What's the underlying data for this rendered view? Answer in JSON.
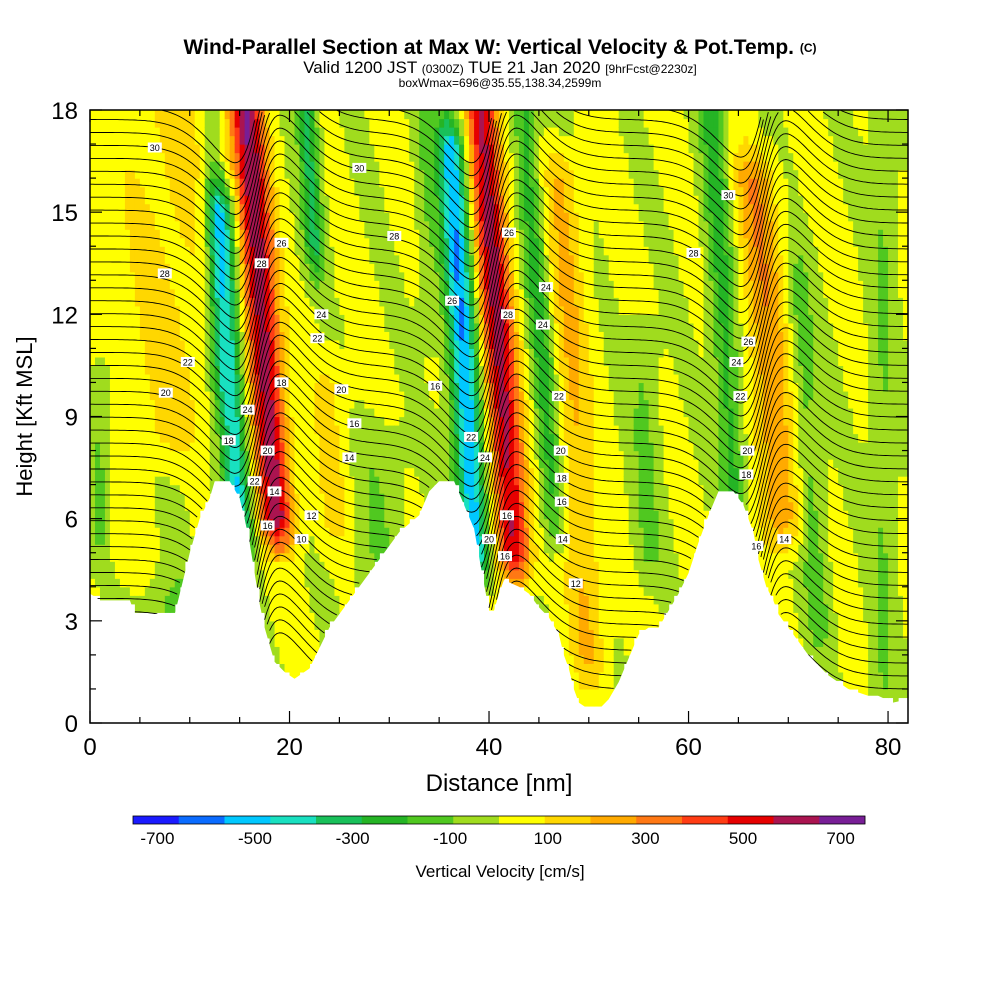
{
  "title": {
    "main": "Wind-Parallel Section at Max W: Vertical Velocity & Pot.Temp.",
    "main_tag": "(C)",
    "valid_prefix": "Valid 1200 JST",
    "valid_utc": "(0300Z)",
    "valid_date": "TUE 21 Jan 2020",
    "forecast": "[9hrFcst@2230z]",
    "box": "boxWmax=696@35.55,138.34,2599m"
  },
  "chart_data": {
    "type": "heatmap",
    "xlabel": "Distance [nm]",
    "ylabel": "Height [Kft MSL]",
    "xlim": [
      0,
      82
    ],
    "ylim": [
      0,
      18
    ],
    "xticks": [
      0,
      20,
      40,
      60,
      80
    ],
    "yticks": [
      0,
      3,
      6,
      9,
      12,
      15,
      18
    ],
    "colorbar": {
      "label": "Vertical Velocity [cm/s]",
      "tick_labels": [
        "-700",
        "-500",
        "-300",
        "-100",
        "100",
        "300",
        "500",
        "700"
      ],
      "tick_values": [
        -700,
        -500,
        -300,
        -100,
        100,
        300,
        500,
        700
      ],
      "bins": [
        -750,
        -650,
        -550,
        -450,
        -350,
        -250,
        -150,
        -50,
        50,
        150,
        250,
        350,
        450,
        550,
        650,
        750
      ],
      "colors": [
        "#1a1aff",
        "#0a6bff",
        "#00c8ff",
        "#19e0c0",
        "#19c05a",
        "#25b425",
        "#50c820",
        "#a0dc1e",
        "#ffff00",
        "#ffd700",
        "#ffaa00",
        "#ff7814",
        "#ff3c14",
        "#e60000",
        "#aa1450",
        "#781e96"
      ]
    },
    "terrain": [
      {
        "x": 0,
        "h": 3.8
      },
      {
        "x": 1,
        "h": 3.6
      },
      {
        "x": 4,
        "h": 3.6
      },
      {
        "x": 4.5,
        "h": 3.2
      },
      {
        "x": 6,
        "h": 3.2
      },
      {
        "x": 8.5,
        "h": 3.2
      },
      {
        "x": 9,
        "h": 3.8
      },
      {
        "x": 9.5,
        "h": 4.4
      },
      {
        "x": 10,
        "h": 5.0
      },
      {
        "x": 11,
        "h": 6.0
      },
      {
        "x": 12,
        "h": 6.6
      },
      {
        "x": 12.5,
        "h": 7.1
      },
      {
        "x": 14,
        "h": 7.1
      },
      {
        "x": 15,
        "h": 6.6
      },
      {
        "x": 15.5,
        "h": 6.0
      },
      {
        "x": 16,
        "h": 5.3
      },
      {
        "x": 17,
        "h": 3.5
      },
      {
        "x": 17.5,
        "h": 2.8
      },
      {
        "x": 18.5,
        "h": 1.8
      },
      {
        "x": 19.5,
        "h": 1.5
      },
      {
        "x": 20.5,
        "h": 1.3
      },
      {
        "x": 22,
        "h": 1.6
      },
      {
        "x": 23,
        "h": 2.2
      },
      {
        "x": 24,
        "h": 2.8
      },
      {
        "x": 25,
        "h": 3.2
      },
      {
        "x": 26,
        "h": 3.6
      },
      {
        "x": 27,
        "h": 4.0
      },
      {
        "x": 29,
        "h": 4.8
      },
      {
        "x": 31,
        "h": 5.6
      },
      {
        "x": 33,
        "h": 6.1
      },
      {
        "x": 34,
        "h": 6.8
      },
      {
        "x": 35,
        "h": 7.1
      },
      {
        "x": 36.5,
        "h": 7.1
      },
      {
        "x": 37.5,
        "h": 6.4
      },
      {
        "x": 38.5,
        "h": 5.7
      },
      {
        "x": 39.3,
        "h": 4.4
      },
      {
        "x": 40,
        "h": 3.3
      },
      {
        "x": 40.5,
        "h": 3.3
      },
      {
        "x": 41,
        "h": 3.8
      },
      {
        "x": 41.5,
        "h": 4.2
      },
      {
        "x": 43,
        "h": 4.0
      },
      {
        "x": 44,
        "h": 3.8
      },
      {
        "x": 45,
        "h": 3.4
      },
      {
        "x": 46,
        "h": 3.1
      },
      {
        "x": 47,
        "h": 2.6
      },
      {
        "x": 47.5,
        "h": 2.0
      },
      {
        "x": 48,
        "h": 1.6
      },
      {
        "x": 48.5,
        "h": 1.0
      },
      {
        "x": 49,
        "h": 0.6
      },
      {
        "x": 50,
        "h": 0.4
      },
      {
        "x": 51,
        "h": 0.4
      },
      {
        "x": 52,
        "h": 0.7
      },
      {
        "x": 53,
        "h": 1.2
      },
      {
        "x": 54,
        "h": 1.9
      },
      {
        "x": 55,
        "h": 2.6
      },
      {
        "x": 56,
        "h": 2.8
      },
      {
        "x": 57,
        "h": 2.8
      },
      {
        "x": 58,
        "h": 3.3
      },
      {
        "x": 59,
        "h": 3.8
      },
      {
        "x": 60,
        "h": 4.4
      },
      {
        "x": 61,
        "h": 5.3
      },
      {
        "x": 62,
        "h": 6.1
      },
      {
        "x": 63,
        "h": 6.8
      },
      {
        "x": 64.5,
        "h": 6.8
      },
      {
        "x": 65.5,
        "h": 6.4
      },
      {
        "x": 66.5,
        "h": 5.6
      },
      {
        "x": 67,
        "h": 4.8
      },
      {
        "x": 67.8,
        "h": 4.0
      },
      {
        "x": 68.5,
        "h": 3.6
      },
      {
        "x": 69,
        "h": 3.2
      },
      {
        "x": 70,
        "h": 2.8
      },
      {
        "x": 71,
        "h": 2.4
      },
      {
        "x": 72,
        "h": 2.0
      },
      {
        "x": 73,
        "h": 1.7
      },
      {
        "x": 74,
        "h": 1.4
      },
      {
        "x": 75,
        "h": 1.2
      },
      {
        "x": 76,
        "h": 1.0
      },
      {
        "x": 77,
        "h": 0.9
      },
      {
        "x": 78,
        "h": 0.8
      },
      {
        "x": 79,
        "h": 0.8
      },
      {
        "x": 80.5,
        "h": 0.6
      },
      {
        "x": 82,
        "h": 0.7
      }
    ],
    "updrafts": [
      {
        "x": 18.7,
        "hb": 6.0,
        "ht": 18,
        "slope": -0.25,
        "w": 1.7,
        "amp": 650
      },
      {
        "x": 42.5,
        "hb": 5.0,
        "ht": 18,
        "slope": -0.25,
        "w": 1.7,
        "amp": 620
      },
      {
        "x": 69.5,
        "hb": 6.0,
        "ht": 16.0,
        "slope": -0.3,
        "w": 2.0,
        "amp": 280
      },
      {
        "x": 50.0,
        "hb": 2.0,
        "ht": 16.0,
        "slope": -0.2,
        "w": 1.8,
        "amp": 200
      },
      {
        "x": 24.5,
        "hb": 6.0,
        "ht": 10.0,
        "slope": -0.15,
        "w": 1.8,
        "amp": 110
      },
      {
        "x": 8.0,
        "hb": 5.0,
        "ht": 18,
        "slope": 0,
        "w": 6.0,
        "amp": 110
      }
    ],
    "downdrafts": [
      {
        "x": 15.0,
        "hb": 5.5,
        "ht": 15.0,
        "slope": -0.2,
        "w": 1.4,
        "amp": -520
      },
      {
        "x": 38.6,
        "hb": 5.0,
        "ht": 17.0,
        "slope": -0.2,
        "w": 1.5,
        "amp": -600
      },
      {
        "x": 22.5,
        "hb": 14.0,
        "ht": 18,
        "slope": -0.2,
        "w": 1.0,
        "amp": -330
      },
      {
        "x": 46.5,
        "hb": 6.0,
        "ht": 18,
        "slope": -0.25,
        "w": 1.2,
        "amp": -250
      },
      {
        "x": 64.5,
        "hb": 7.0,
        "ht": 18,
        "slope": -0.2,
        "w": 1.3,
        "amp": -250
      },
      {
        "x": 56.0,
        "hb": 5.0,
        "ht": 11.0,
        "slope": -0.1,
        "w": 1.5,
        "amp": -120
      },
      {
        "x": 73.0,
        "hb": 3.0,
        "ht": 13.0,
        "slope": -0.2,
        "w": 1.3,
        "amp": -160
      },
      {
        "x": 9.0,
        "hb": 3.0,
        "ht": 7.0,
        "slope": 0,
        "w": 4.0,
        "amp": -130
      },
      {
        "x": 1.0,
        "hb": 5.5,
        "ht": 10.0,
        "slope": 0,
        "w": 1.0,
        "amp": -150
      },
      {
        "x": 29.0,
        "hb": 4.0,
        "ht": 8.0,
        "slope": 0,
        "w": 2.5,
        "amp": -100
      },
      {
        "x": 13.0,
        "hb": 10.0,
        "ht": 18,
        "slope": -0.1,
        "w": 1.0,
        "amp": -140
      },
      {
        "x": 34.0,
        "hb": 12.0,
        "ht": 18,
        "slope": -0.1,
        "w": 1.0,
        "amp": -100
      },
      {
        "x": 79.5,
        "hb": 1.0,
        "ht": 18,
        "slope": 0,
        "w": 1.3,
        "amp": -110
      }
    ],
    "contour_labels": [
      {
        "text": "30",
        "x": 6.5,
        "y": 16.9
      },
      {
        "text": "30",
        "x": 27,
        "y": 16.3
      },
      {
        "text": "30",
        "x": 64,
        "y": 15.5
      },
      {
        "text": "28",
        "x": 7.5,
        "y": 13.2
      },
      {
        "text": "28",
        "x": 30.5,
        "y": 14.3
      },
      {
        "text": "28",
        "x": 60.5,
        "y": 13.8
      },
      {
        "text": "28",
        "x": 17.2,
        "y": 13.5
      },
      {
        "text": "26",
        "x": 19.2,
        "y": 14.1
      },
      {
        "text": "26",
        "x": 36.3,
        "y": 12.4
      },
      {
        "text": "26",
        "x": 42.0,
        "y": 14.4
      },
      {
        "text": "28",
        "x": 41.9,
        "y": 12.0
      },
      {
        "text": "24",
        "x": 45.7,
        "y": 12.8
      },
      {
        "text": "26",
        "x": 66.0,
        "y": 11.2
      },
      {
        "text": "24",
        "x": 23.2,
        "y": 12.0
      },
      {
        "text": "22",
        "x": 22.8,
        "y": 11.3
      },
      {
        "text": "24",
        "x": 45.4,
        "y": 11.7
      },
      {
        "text": "24",
        "x": 64.8,
        "y": 10.6
      },
      {
        "text": "22",
        "x": 9.8,
        "y": 10.6
      },
      {
        "text": "20",
        "x": 7.6,
        "y": 9.7
      },
      {
        "text": "20",
        "x": 25.2,
        "y": 9.8
      },
      {
        "text": "16",
        "x": 34.6,
        "y": 9.9
      },
      {
        "text": "18",
        "x": 19.2,
        "y": 10.0
      },
      {
        "text": "22",
        "x": 47.0,
        "y": 9.6
      },
      {
        "text": "22",
        "x": 65.2,
        "y": 9.6
      },
      {
        "text": "24",
        "x": 15.8,
        "y": 9.2
      },
      {
        "text": "16",
        "x": 26.5,
        "y": 8.8
      },
      {
        "text": "18",
        "x": 13.9,
        "y": 8.3
      },
      {
        "text": "20",
        "x": 17.8,
        "y": 8.0
      },
      {
        "text": "22",
        "x": 38.2,
        "y": 8.4
      },
      {
        "text": "20",
        "x": 47.2,
        "y": 8.0
      },
      {
        "text": "20",
        "x": 65.9,
        "y": 8.0
      },
      {
        "text": "14",
        "x": 26.0,
        "y": 7.8
      },
      {
        "text": "24",
        "x": 39.6,
        "y": 7.8
      },
      {
        "text": "18",
        "x": 47.3,
        "y": 7.2
      },
      {
        "text": "18",
        "x": 65.8,
        "y": 7.3
      },
      {
        "text": "22",
        "x": 16.5,
        "y": 7.1
      },
      {
        "text": "14",
        "x": 18.5,
        "y": 6.8
      },
      {
        "text": "16",
        "x": 47.3,
        "y": 6.5
      },
      {
        "text": "12",
        "x": 22.2,
        "y": 6.1
      },
      {
        "text": "16",
        "x": 41.8,
        "y": 6.1
      },
      {
        "text": "16",
        "x": 17.8,
        "y": 5.8
      },
      {
        "text": "10",
        "x": 21.2,
        "y": 5.4
      },
      {
        "text": "20",
        "x": 40.0,
        "y": 5.4
      },
      {
        "text": "14",
        "x": 47.4,
        "y": 5.4
      },
      {
        "text": "14",
        "x": 69.6,
        "y": 5.4
      },
      {
        "text": "16",
        "x": 66.8,
        "y": 5.2
      },
      {
        "text": "16",
        "x": 41.6,
        "y": 4.9
      },
      {
        "text": "12",
        "x": 48.7,
        "y": 4.1
      }
    ]
  }
}
